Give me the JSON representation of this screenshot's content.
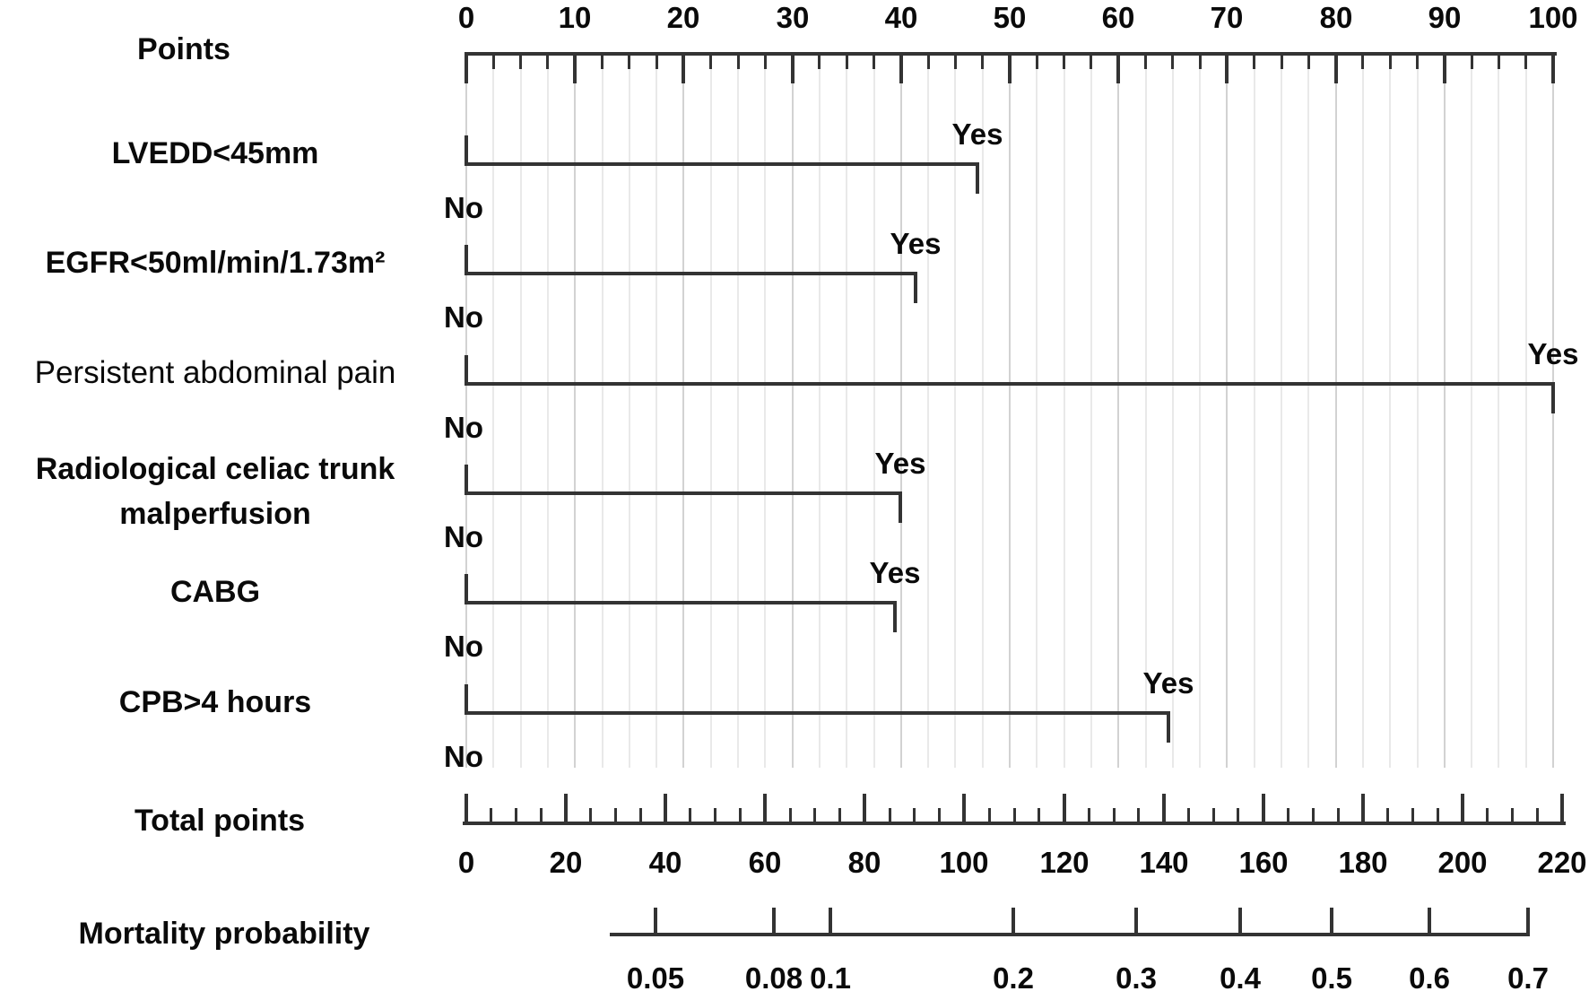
{
  "figure": {
    "description": "Nomogram predicting mortality probability"
  },
  "colors": {
    "background": "#ffffff",
    "line": "#333333",
    "text": "#0a0a0a",
    "grid_minor": "#e9e9e9",
    "grid_major": "#d2d2d2"
  },
  "chart_data": {
    "type": "nomogram",
    "points_axis": {
      "label": "Points",
      "min": 0,
      "max": 100,
      "tick_labels": [
        "0",
        "10",
        "20",
        "30",
        "40",
        "50",
        "60",
        "70",
        "80",
        "90",
        "100"
      ],
      "label_step": 10,
      "minor_step": 2.5
    },
    "variables": [
      {
        "label": "LVEDD<45mm",
        "label_lines": [
          "LVEDD<45mm"
        ],
        "label_weight": "bold",
        "yes_label": "Yes",
        "no_label": "No",
        "yes_points": 47.0,
        "no_points": 0
      },
      {
        "label": "EGFR<50ml/min/1.73m²",
        "label_lines": [
          "EGFR<50ml/min/1.73m²"
        ],
        "label_weight": "bold",
        "yes_label": "Yes",
        "no_label": "No",
        "yes_points": 41.3,
        "no_points": 0
      },
      {
        "label": "Persistent abdominal pain",
        "label_lines": [
          "Persistent abdominal pain"
        ],
        "label_weight": "regular",
        "yes_label": "Yes",
        "no_label": "No",
        "yes_points": 100.0,
        "no_points": 0
      },
      {
        "label": "Radiological celiac trunk malperfusion",
        "label_lines": [
          "Radiological celiac trunk",
          "malperfusion"
        ],
        "label_weight": "bold",
        "yes_label": "Yes",
        "no_label": "No",
        "yes_points": 39.9,
        "no_points": 0
      },
      {
        "label": "CABG",
        "label_lines": [
          "CABG"
        ],
        "label_weight": "bold",
        "yes_label": "Yes",
        "no_label": "No",
        "yes_points": 39.4,
        "no_points": 0
      },
      {
        "label": "CPB>4 hours",
        "label_lines": [
          "CPB>4 hours"
        ],
        "label_weight": "bold",
        "yes_label": "Yes",
        "no_label": "No",
        "yes_points": 64.6,
        "no_points": 0
      }
    ],
    "total_points_axis": {
      "label": "Total points",
      "min": 0,
      "max": 220,
      "tick_labels": [
        "0",
        "20",
        "40",
        "60",
        "80",
        "100",
        "120",
        "140",
        "160",
        "180",
        "200",
        "220"
      ],
      "label_step": 20,
      "minor_step": 5
    },
    "mortality_axis": {
      "label": "Mortality probability",
      "start_points": 28.8,
      "ticks": [
        {
          "value": "0.05",
          "points": 38.0
        },
        {
          "value": "0.08",
          "points": 61.8
        },
        {
          "value": "0.1",
          "points": 73.1
        },
        {
          "value": "0.2",
          "points": 109.8
        },
        {
          "value": "0.3",
          "points": 134.5
        },
        {
          "value": "0.4",
          "points": 155.4
        },
        {
          "value": "0.5",
          "points": 173.7
        },
        {
          "value": "0.6",
          "points": 193.4
        },
        {
          "value": "0.7",
          "points": 213.2
        }
      ]
    }
  }
}
